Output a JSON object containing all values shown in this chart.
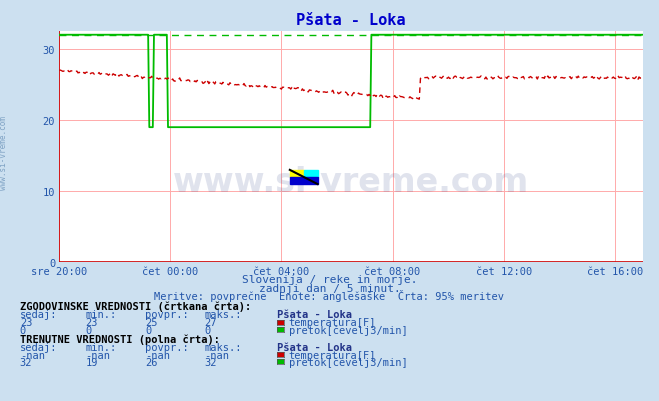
{
  "title": "Pšata - Loka",
  "bg_color": "#cce0f0",
  "plot_bg_color": "#ffffff",
  "grid_color": "#ffaaaa",
  "x_labels": [
    "sre 20:00",
    "čet 00:00",
    "čet 04:00",
    "čet 08:00",
    "čet 12:00",
    "čet 16:00"
  ],
  "x_ticks_pos": [
    0,
    4,
    8,
    12,
    16,
    20
  ],
  "y_ticks": [
    0,
    10,
    20,
    30
  ],
  "ylim_max": 32.5,
  "xlim_max": 21,
  "subtitle1": "Slovenija / reke in morje.",
  "subtitle2": "zadnji dan / 5 minut.",
  "subtitle3": "Meritve: povprečne  Enote: anglešaške  Črta: 95% meritev",
  "watermark_text": "www.si-vreme.com",
  "watermark_side": "www.si-vreme.com",
  "hist_section": "ZGODOVINSKE VREDNOSTI (črtkana črta):",
  "curr_section": "TRENUTNE VREDNOSTI (polna črta):",
  "col_headers": [
    "sedaj:",
    "min.:",
    "povpr.:",
    "maks.:"
  ],
  "station": "Pšata - Loka",
  "hist_temp": [
    23,
    23,
    25,
    27
  ],
  "hist_flow": [
    0,
    0,
    0,
    0
  ],
  "curr_temp": [
    "-nan",
    "-nan",
    "-nan",
    "-nan"
  ],
  "curr_flow": [
    32,
    19,
    26,
    32
  ],
  "temp_color": "#cc0000",
  "flow_color": "#00bb00",
  "title_color": "#0000cc",
  "text_color_blue": "#2255aa",
  "text_color_dark": "#223388",
  "axis_color": "#cc0000",
  "wm_color": "#334488",
  "wm_alpha": 0.15,
  "side_wm_color": "#336699",
  "side_wm_alpha": 0.5
}
